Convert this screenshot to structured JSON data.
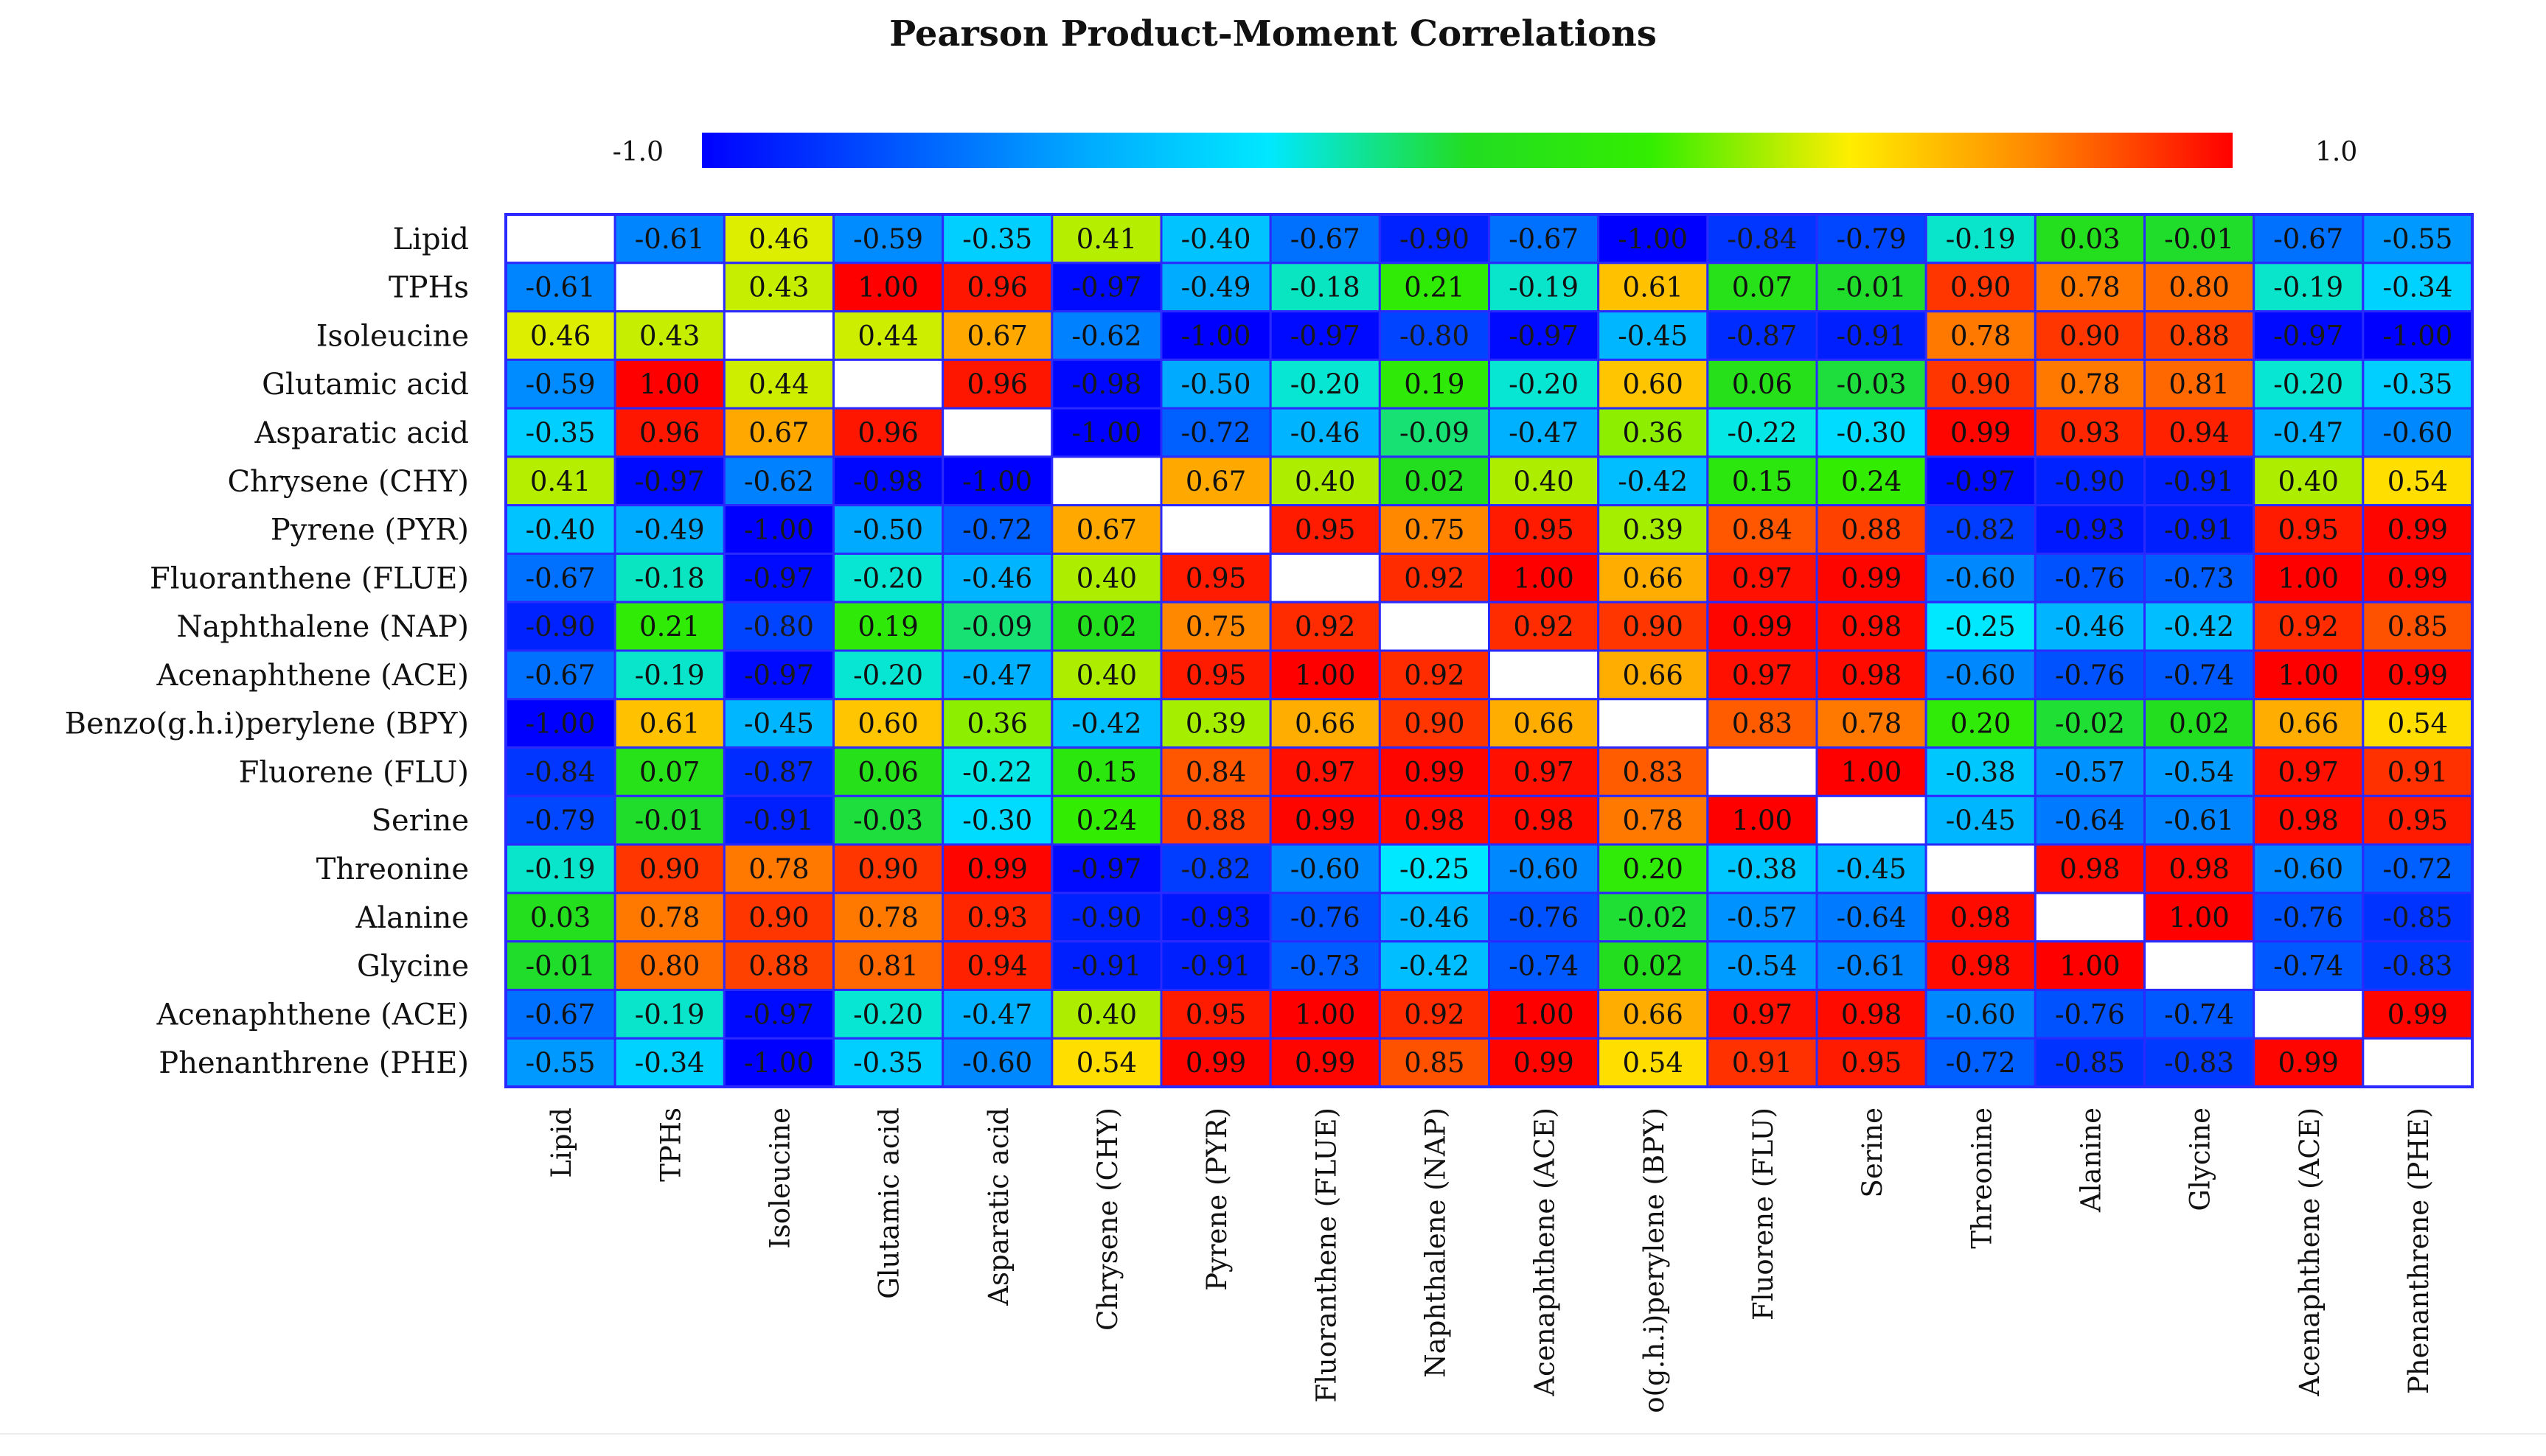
{
  "chart_data": {
    "type": "heatmap",
    "title": "Pearson Product-Moment Correlations",
    "colorbar": {
      "min": -1.0,
      "max": 1.0,
      "min_label": "-1.0",
      "max_label": "1.0"
    },
    "row_labels": [
      "Lipid",
      "TPHs",
      "Isoleucine",
      "Glutamic acid",
      "Asparatic acid",
      "Chrysene (CHY)",
      "Pyrene (PYR)",
      "Fluoranthene (FLUE)",
      "Naphthalene (NAP)",
      "Acenaphthene (ACE)",
      "Benzo(g.h.i)perylene (BPY)",
      "Fluorene (FLU)",
      "Serine",
      "Threonine",
      "Alanine",
      "Glycine",
      "Acenaphthene (ACE)",
      "Phenanthrene (PHE)"
    ],
    "col_labels": [
      "Lipid",
      "TPHs",
      "Isoleucine",
      "Glutamic acid",
      "Asparatic acid",
      "Chrysene (CHY)",
      "Pyrene (PYR)",
      "Fluoranthene (FLUE)",
      "Naphthalene (NAP)",
      "Acenaphthene (ACE)",
      "o(g.h.i)perylene (BPY)",
      "Fluorene (FLU)",
      "Serine",
      "Threonine",
      "Alanine",
      "Glycine",
      "Acenaphthene (ACE)",
      "Phenanthrene (PHE)"
    ],
    "values": [
      [
        null,
        "-0.61",
        "0.46",
        "-0.59",
        "-0.35",
        "0.41",
        "-0.40",
        "-0.67",
        "-0.90",
        "-0.67",
        "-1.00",
        "-0.84",
        "-0.79",
        "-0.19",
        "0.03",
        "-0.01",
        "-0.67",
        "-0.55"
      ],
      [
        "-0.61",
        null,
        "0.43",
        "1.00",
        "0.96",
        "-0.97",
        "-0.49",
        "-0.18",
        "0.21",
        "-0.19",
        "0.61",
        "0.07",
        "-0.01",
        "0.90",
        "0.78",
        "0.80",
        "-0.19",
        "-0.34"
      ],
      [
        "0.46",
        "0.43",
        null,
        "0.44",
        "0.67",
        "-0.62",
        "-1.00",
        "-0.97",
        "-0.80",
        "-0.97",
        "-0.45",
        "-0.87",
        "-0.91",
        "0.78",
        "0.90",
        "0.88",
        "-0.97",
        "-1.00"
      ],
      [
        "-0.59",
        "1.00",
        "0.44",
        null,
        "0.96",
        "-0.98",
        "-0.50",
        "-0.20",
        "0.19",
        "-0.20",
        "0.60",
        "0.06",
        "-0.03",
        "0.90",
        "0.78",
        "0.81",
        "-0.20",
        "-0.35"
      ],
      [
        "-0.35",
        "0.96",
        "0.67",
        "0.96",
        null,
        "-1.00",
        "-0.72",
        "-0.46",
        "-0.09",
        "-0.47",
        "0.36",
        "-0.22",
        "-0.30",
        "0.99",
        "0.93",
        "0.94",
        "-0.47",
        "-0.60"
      ],
      [
        "0.41",
        "-0.97",
        "-0.62",
        "-0.98",
        "-1.00",
        null,
        "0.67",
        "0.40",
        "0.02",
        "0.40",
        "-0.42",
        "0.15",
        "0.24",
        "-0.97",
        "-0.90",
        "-0.91",
        "0.40",
        "0.54"
      ],
      [
        "-0.40",
        "-0.49",
        "-1.00",
        "-0.50",
        "-0.72",
        "0.67",
        null,
        "0.95",
        "0.75",
        "0.95",
        "0.39",
        "0.84",
        "0.88",
        "-0.82",
        "-0.93",
        "-0.91",
        "0.95",
        "0.99"
      ],
      [
        "-0.67",
        "-0.18",
        "-0.97",
        "-0.20",
        "-0.46",
        "0.40",
        "0.95",
        null,
        "0.92",
        "1.00",
        "0.66",
        "0.97",
        "0.99",
        "-0.60",
        "-0.76",
        "-0.73",
        "1.00",
        "0.99"
      ],
      [
        "-0.90",
        "0.21",
        "-0.80",
        "0.19",
        "-0.09",
        "0.02",
        "0.75",
        "0.92",
        null,
        "0.92",
        "0.90",
        "0.99",
        "0.98",
        "-0.25",
        "-0.46",
        "-0.42",
        "0.92",
        "0.85"
      ],
      [
        "-0.67",
        "-0.19",
        "-0.97",
        "-0.20",
        "-0.47",
        "0.40",
        "0.95",
        "1.00",
        "0.92",
        null,
        "0.66",
        "0.97",
        "0.98",
        "-0.60",
        "-0.76",
        "-0.74",
        "1.00",
        "0.99"
      ],
      [
        "-1.00",
        "0.61",
        "-0.45",
        "0.60",
        "0.36",
        "-0.42",
        "0.39",
        "0.66",
        "0.90",
        "0.66",
        null,
        "0.83",
        "0.78",
        "0.20",
        "-0.02",
        "0.02",
        "0.66",
        "0.54"
      ],
      [
        "-0.84",
        "0.07",
        "-0.87",
        "0.06",
        "-0.22",
        "0.15",
        "0.84",
        "0.97",
        "0.99",
        "0.97",
        "0.83",
        null,
        "1.00",
        "-0.38",
        "-0.57",
        "-0.54",
        "0.97",
        "0.91"
      ],
      [
        "-0.79",
        "-0.01",
        "-0.91",
        "-0.03",
        "-0.30",
        "0.24",
        "0.88",
        "0.99",
        "0.98",
        "0.98",
        "0.78",
        "1.00",
        null,
        "-0.45",
        "-0.64",
        "-0.61",
        "0.98",
        "0.95"
      ],
      [
        "-0.19",
        "0.90",
        "0.78",
        "0.90",
        "0.99",
        "-0.97",
        "-0.82",
        "-0.60",
        "-0.25",
        "-0.60",
        "0.20",
        "-0.38",
        "-0.45",
        null,
        "0.98",
        "0.98",
        "-0.60",
        "-0.72"
      ],
      [
        "0.03",
        "0.78",
        "0.90",
        "0.78",
        "0.93",
        "-0.90",
        "-0.93",
        "-0.76",
        "-0.46",
        "-0.76",
        "-0.02",
        "-0.57",
        "-0.64",
        "0.98",
        null,
        "1.00",
        "-0.76",
        "-0.85"
      ],
      [
        "-0.01",
        "0.80",
        "0.88",
        "0.81",
        "0.94",
        "-0.91",
        "-0.91",
        "-0.73",
        "-0.42",
        "-0.74",
        "0.02",
        "-0.54",
        "-0.61",
        "0.98",
        "1.00",
        null,
        "-0.74",
        "-0.83"
      ],
      [
        "-0.67",
        "-0.19",
        "-0.97",
        "-0.20",
        "-0.47",
        "0.40",
        "0.95",
        "1.00",
        "0.92",
        "1.00",
        "0.66",
        "0.97",
        "0.98",
        "-0.60",
        "-0.76",
        "-0.74",
        null,
        "0.99"
      ],
      [
        "-0.55",
        "-0.34",
        "-1.00",
        "-0.35",
        "-0.60",
        "0.54",
        "0.99",
        "0.99",
        "0.85",
        "0.99",
        "0.54",
        "0.91",
        "0.95",
        "-0.72",
        "-0.85",
        "-0.83",
        "0.99",
        null
      ]
    ]
  }
}
